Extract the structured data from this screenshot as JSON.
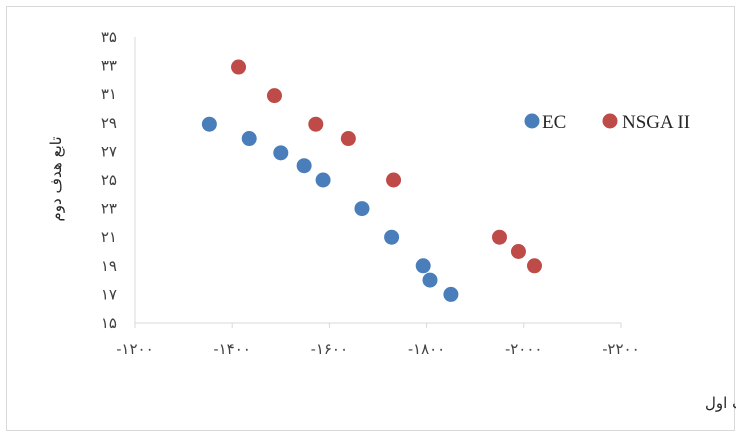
{
  "chart_data": {
    "type": "scatter",
    "title": "",
    "xlabel": "تابع هدف اول",
    "ylabel": "تابع هدف دوم",
    "xlim": [
      -1200,
      -2200
    ],
    "ylim": [
      15,
      35
    ],
    "x_ticks": [
      -1200,
      -1400,
      -1600,
      -1800,
      -2000,
      -2200
    ],
    "x_tick_labels": [
      "-۱۲۰۰",
      "-۱۴۰۰",
      "-۱۶۰۰",
      "-۱۸۰۰",
      "-۲۰۰۰",
      "-۲۲۰۰"
    ],
    "y_ticks": [
      15,
      17,
      19,
      21,
      23,
      25,
      27,
      29,
      31,
      33,
      35
    ],
    "y_tick_labels": [
      "۱۵",
      "۱۷",
      "۱۹",
      "۲۱",
      "۲۳",
      "۲۵",
      "۲۷",
      "۲۹",
      "۳۱",
      "۳۳",
      "۳۵"
    ],
    "grid": false,
    "legend_position": "right",
    "series": [
      {
        "name": "EC",
        "color": "#4a7ebb",
        "points": [
          {
            "x": -1353,
            "y": 28.9
          },
          {
            "x": -1435,
            "y": 27.9
          },
          {
            "x": -1500,
            "y": 26.9
          },
          {
            "x": -1548,
            "y": 26.0
          },
          {
            "x": -1587,
            "y": 25.0
          },
          {
            "x": -1667,
            "y": 23.0
          },
          {
            "x": -1728,
            "y": 21.0
          },
          {
            "x": -1793,
            "y": 19.0
          },
          {
            "x": -1807,
            "y": 18.0
          },
          {
            "x": -1850,
            "y": 17.0
          }
        ]
      },
      {
        "name": "NSGA II",
        "color": "#be4b48",
        "points": [
          {
            "x": -1413,
            "y": 32.9
          },
          {
            "x": -1487,
            "y": 30.9
          },
          {
            "x": -1572,
            "y": 28.9
          },
          {
            "x": -1639,
            "y": 27.9
          },
          {
            "x": -1732,
            "y": 25.0
          },
          {
            "x": -1950,
            "y": 21.0
          },
          {
            "x": -1989,
            "y": 20.0
          },
          {
            "x": -2022,
            "y": 19.0
          }
        ]
      }
    ]
  }
}
